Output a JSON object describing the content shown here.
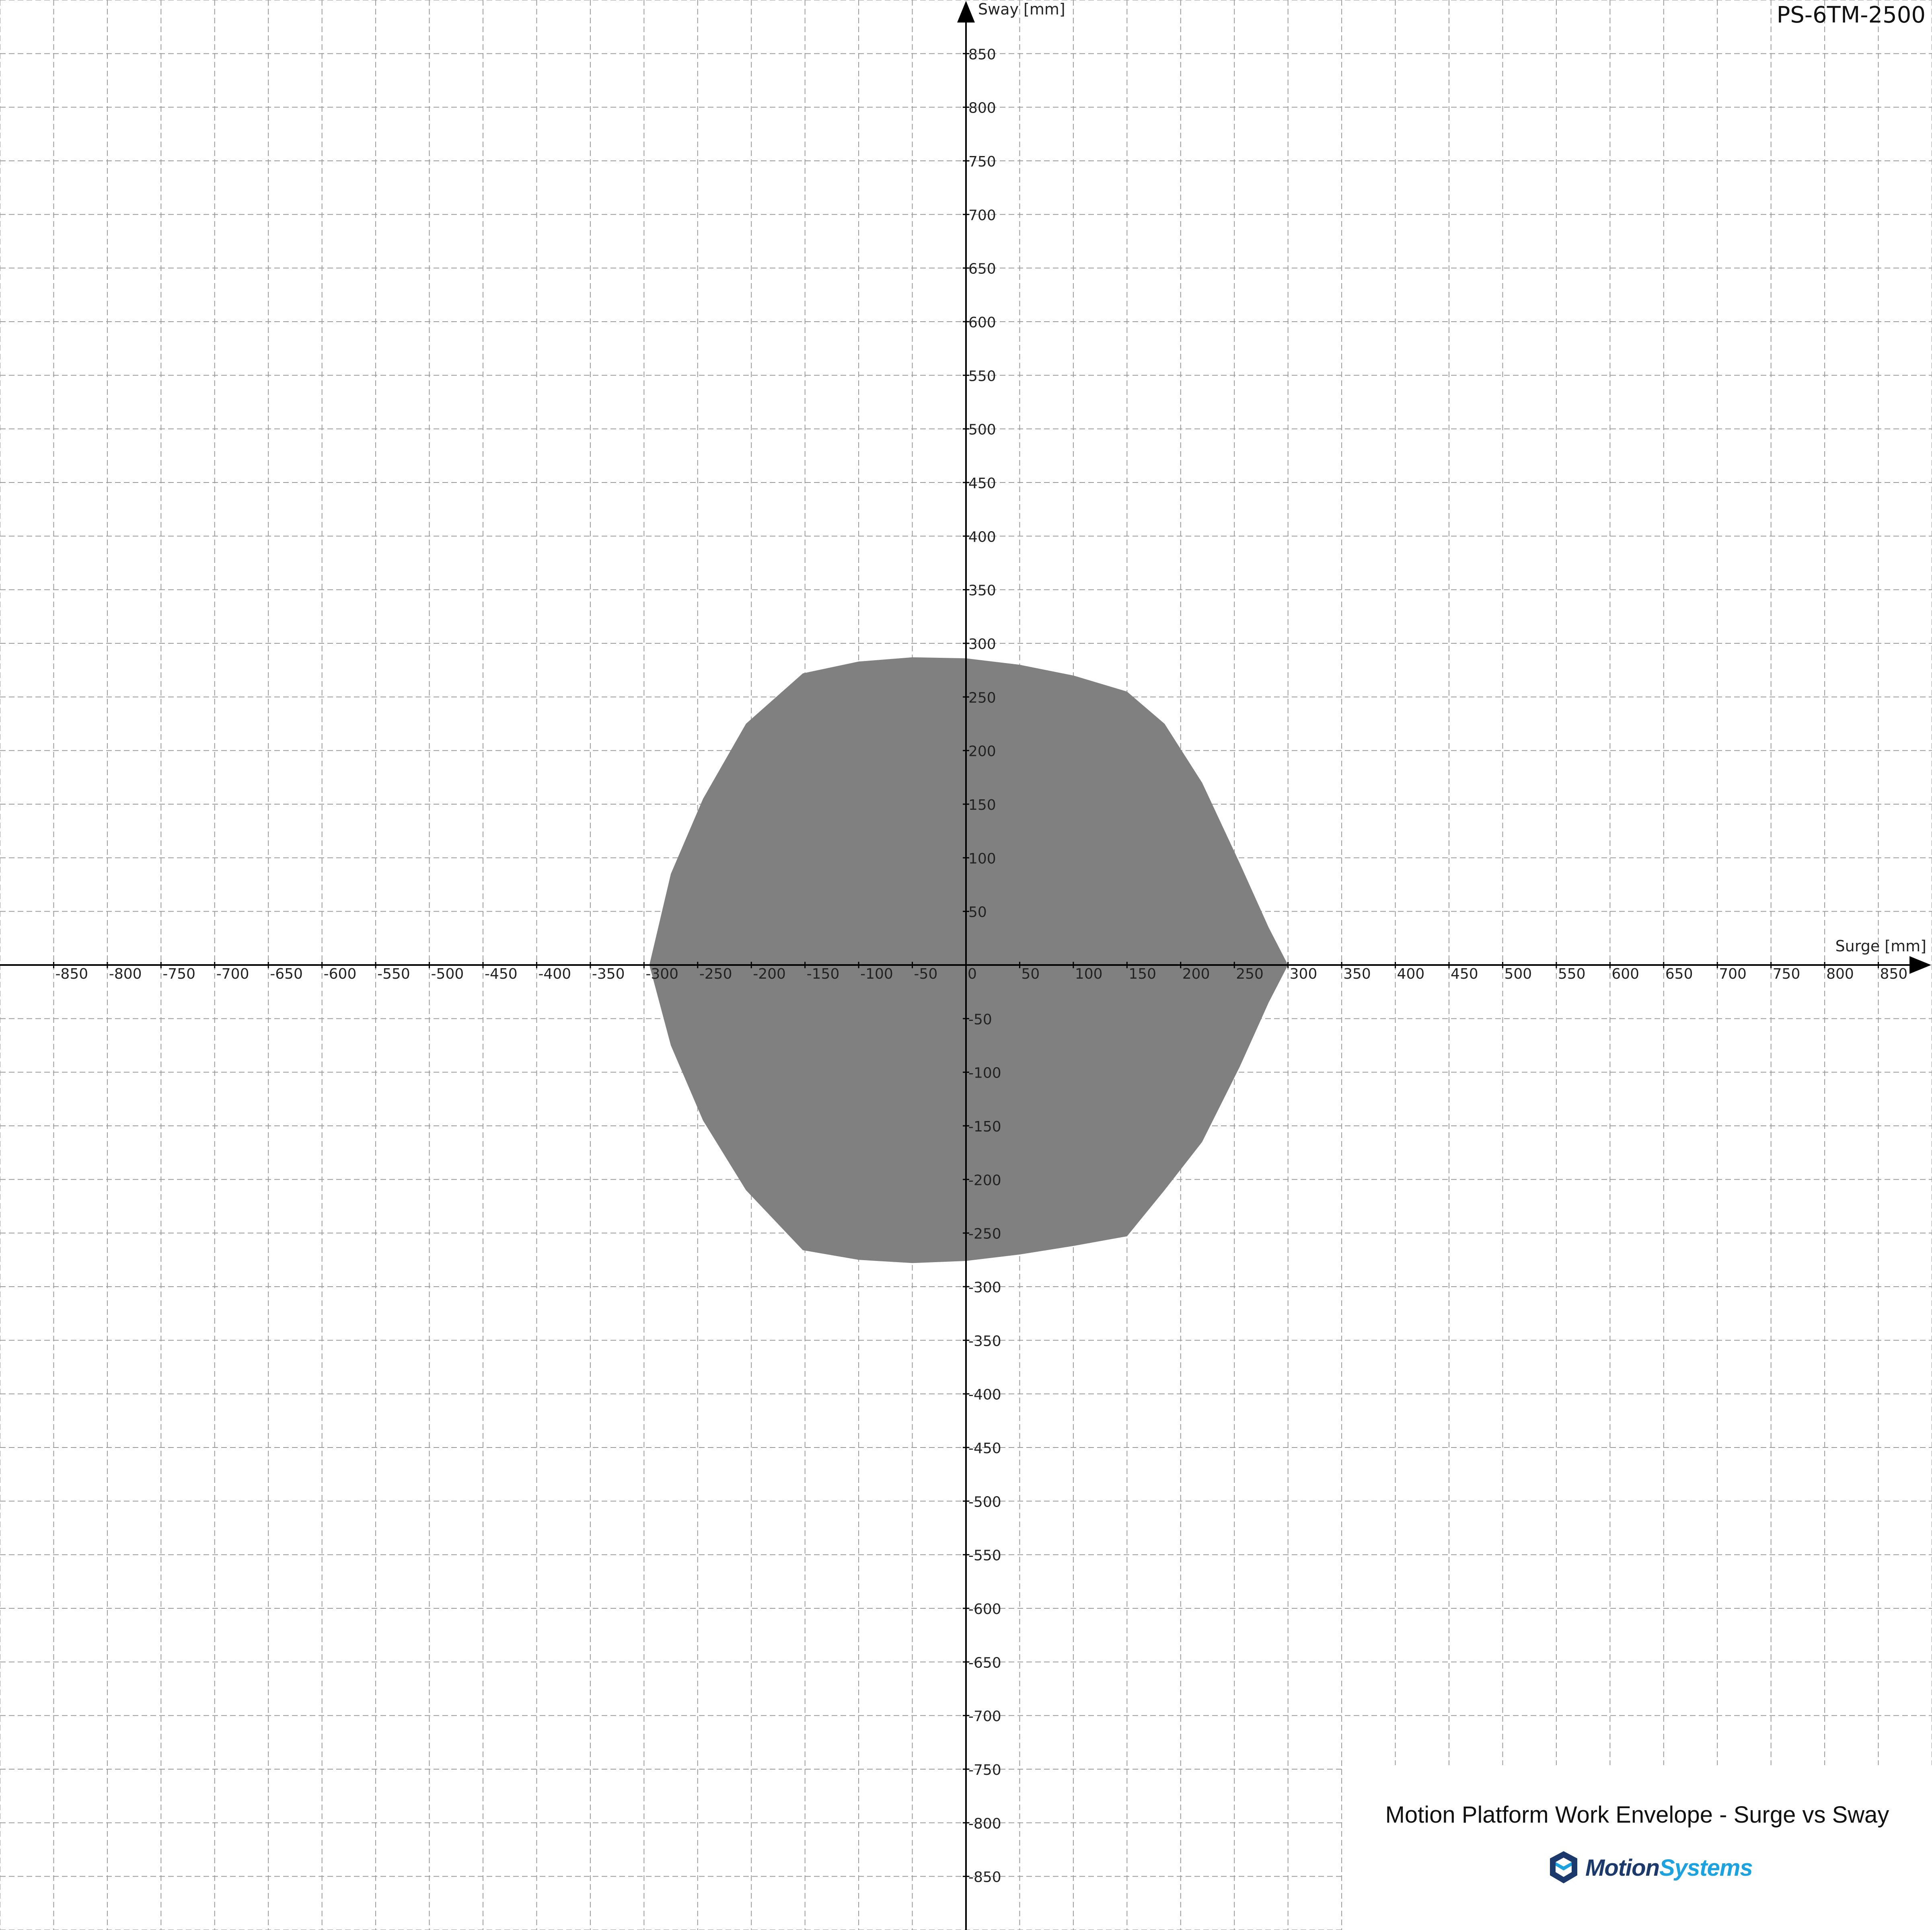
{
  "model_label": "PS-6TM-2500",
  "caption": {
    "title": "Motion Platform Work Envelope - Surge vs Sway",
    "brand_icon": "motionsystems-cube-icon",
    "brand_name_part1": "Motion",
    "brand_name_part2": "Systems",
    "brand_color_dark": "#1b3a6b",
    "brand_color_light": "#1aa3e0"
  },
  "chart_data": {
    "type": "area",
    "xlabel": "Surge [mm]",
    "ylabel": "Sway [mm]",
    "xlim": [
      -900,
      900
    ],
    "ylim": [
      -900,
      900
    ],
    "tick_step": 50,
    "grid": true,
    "grid_style": "dashed",
    "fill_color": "#808080",
    "x_ticks": [
      -850,
      -800,
      -750,
      -700,
      -650,
      -600,
      -550,
      -500,
      -450,
      -400,
      -350,
      -300,
      -250,
      -200,
      -150,
      -100,
      -50,
      0,
      50,
      100,
      150,
      200,
      250,
      300,
      350,
      400,
      450,
      500,
      550,
      600,
      650,
      700,
      750,
      800,
      850
    ],
    "y_ticks": [
      850,
      800,
      750,
      700,
      650,
      600,
      550,
      500,
      450,
      400,
      350,
      300,
      250,
      200,
      150,
      100,
      50,
      -50,
      -100,
      -150,
      -200,
      -250,
      -300,
      -350,
      -400,
      -450,
      -500,
      -550,
      -600,
      -650,
      -700,
      -750,
      -800,
      -850
    ],
    "envelope": {
      "name": "",
      "points": [
        [
          -295,
          0
        ],
        [
          -275,
          85
        ],
        [
          -245,
          155
        ],
        [
          -205,
          225
        ],
        [
          -152,
          272
        ],
        [
          -100,
          283
        ],
        [
          -50,
          287
        ],
        [
          0,
          286
        ],
        [
          50,
          280
        ],
        [
          100,
          270
        ],
        [
          150,
          255
        ],
        [
          185,
          225
        ],
        [
          220,
          170
        ],
        [
          255,
          95
        ],
        [
          282,
          35
        ],
        [
          300,
          0
        ],
        [
          282,
          -35
        ],
        [
          255,
          -95
        ],
        [
          220,
          -165
        ],
        [
          185,
          -210
        ],
        [
          150,
          -253
        ],
        [
          100,
          -262
        ],
        [
          50,
          -270
        ],
        [
          0,
          -276
        ],
        [
          -50,
          -278
        ],
        [
          -100,
          -275
        ],
        [
          -152,
          -266
        ],
        [
          -205,
          -210
        ],
        [
          -245,
          -145
        ],
        [
          -275,
          -75
        ]
      ]
    }
  }
}
